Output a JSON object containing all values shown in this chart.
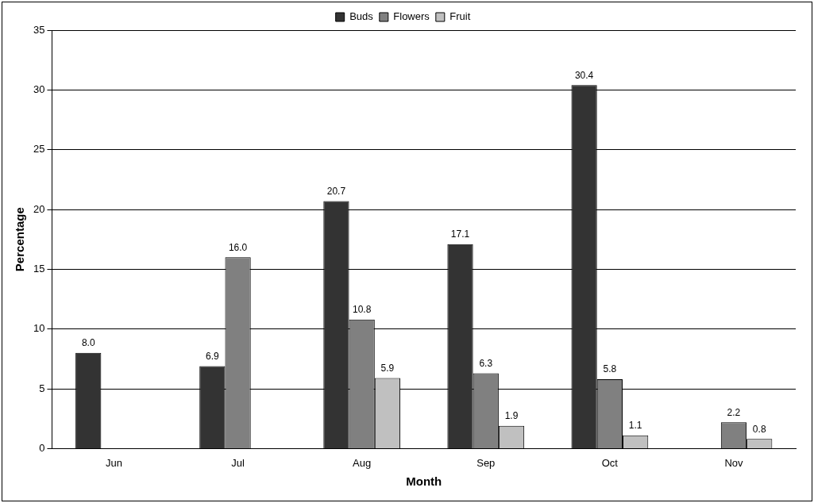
{
  "chart_data": {
    "type": "bar",
    "xlabel": "Month",
    "ylabel": "Percentage",
    "categories": [
      "Jun",
      "Jul",
      "Aug",
      "Sep",
      "Oct",
      "Nov"
    ],
    "series": [
      {
        "name": "Buds",
        "color": "#333333",
        "values": [
          8.0,
          6.9,
          20.7,
          17.1,
          30.4,
          null
        ],
        "value_labels": [
          "8.0",
          "6.9",
          "20.7",
          "17.1",
          "30.4",
          null
        ]
      },
      {
        "name": "Flowers",
        "color": "#808080",
        "values": [
          null,
          16.0,
          10.8,
          6.3,
          5.8,
          2.2
        ],
        "value_labels": [
          null,
          "16.0",
          "10.8",
          "6.3",
          "5.8",
          "2.2"
        ]
      },
      {
        "name": "Fruit",
        "color": "#c0c0c0",
        "values": [
          null,
          null,
          5.9,
          1.9,
          1.1,
          0.8
        ],
        "value_labels": [
          null,
          null,
          "5.9",
          "1.9",
          "1.1",
          "0.8"
        ]
      }
    ],
    "ylim": [
      0,
      35
    ],
    "yticks": [
      0,
      5,
      10,
      15,
      20,
      25,
      30,
      35
    ],
    "grid": "y",
    "legend": "top"
  }
}
